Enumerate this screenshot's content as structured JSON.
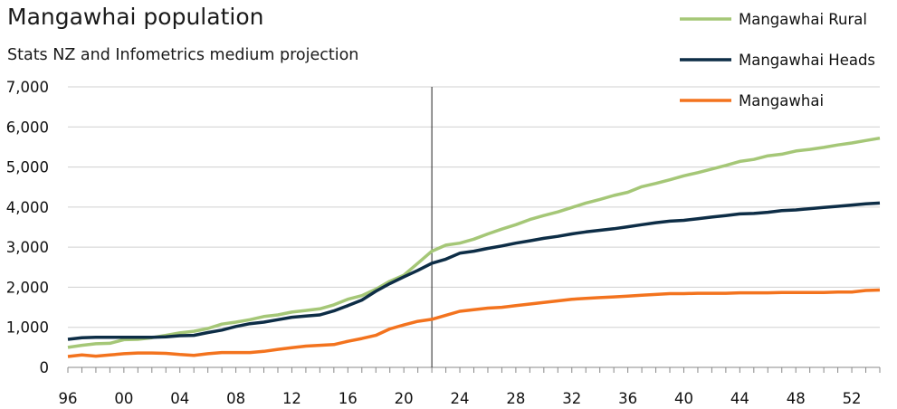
{
  "chart_data": {
    "type": "line",
    "title": "Mangawhai population",
    "subtitle": "Stats NZ and Infometrics medium projection",
    "xlabel": "",
    "ylabel": "",
    "xlim": [
      1996,
      2054
    ],
    "ylim": [
      0,
      7000
    ],
    "yticks": [
      0,
      1000,
      2000,
      3000,
      4000,
      5000,
      6000,
      7000
    ],
    "ytick_labels": [
      "0",
      "1,000",
      "2,000",
      "3,000",
      "4,000",
      "5,000",
      "6,000",
      "7,000"
    ],
    "xticks": [
      1996,
      2000,
      2004,
      2008,
      2012,
      2016,
      2020,
      2024,
      2028,
      2032,
      2036,
      2040,
      2044,
      2048,
      2052
    ],
    "xtick_labels": [
      "96",
      "00",
      "04",
      "08",
      "12",
      "16",
      "20",
      "24",
      "28",
      "32",
      "36",
      "40",
      "44",
      "48",
      "52"
    ],
    "vertical_marker_x": 2022,
    "grid": "horizontal",
    "legend_position": "top-right",
    "x": [
      1996,
      1997,
      1998,
      1999,
      2000,
      2001,
      2002,
      2003,
      2004,
      2005,
      2006,
      2007,
      2008,
      2009,
      2010,
      2011,
      2012,
      2013,
      2014,
      2015,
      2016,
      2017,
      2018,
      2019,
      2020,
      2021,
      2022,
      2023,
      2024,
      2025,
      2026,
      2027,
      2028,
      2029,
      2030,
      2031,
      2032,
      2033,
      2034,
      2035,
      2036,
      2037,
      2038,
      2039,
      2040,
      2041,
      2042,
      2043,
      2044,
      2045,
      2046,
      2047,
      2048,
      2049,
      2050,
      2051,
      2052,
      2053,
      2054
    ],
    "series": [
      {
        "name": "Mangawhai Rural",
        "color": "#a5c777",
        "values": [
          500,
          550,
          590,
          600,
          690,
          700,
          740,
          800,
          860,
          900,
          970,
          1080,
          1130,
          1190,
          1270,
          1310,
          1380,
          1420,
          1460,
          1560,
          1700,
          1790,
          1950,
          2150,
          2300,
          2600,
          2900,
          3050,
          3100,
          3200,
          3330,
          3450,
          3560,
          3690,
          3790,
          3880,
          3990,
          4100,
          4190,
          4290,
          4370,
          4510,
          4590,
          4680,
          4780,
          4860,
          4950,
          5040,
          5140,
          5190,
          5280,
          5320,
          5400,
          5440,
          5490,
          5550,
          5600,
          5660,
          5720
        ]
      },
      {
        "name": "Mangawhai Heads",
        "color": "#0d2d46",
        "values": [
          700,
          740,
          750,
          750,
          750,
          750,
          750,
          760,
          790,
          800,
          870,
          930,
          1020,
          1090,
          1130,
          1190,
          1250,
          1280,
          1310,
          1410,
          1540,
          1680,
          1900,
          2090,
          2260,
          2420,
          2600,
          2700,
          2850,
          2900,
          2970,
          3030,
          3100,
          3160,
          3220,
          3270,
          3330,
          3380,
          3420,
          3460,
          3510,
          3560,
          3610,
          3650,
          3670,
          3710,
          3750,
          3790,
          3830,
          3840,
          3870,
          3910,
          3930,
          3960,
          3990,
          4020,
          4050,
          4080,
          4100
        ]
      },
      {
        "name": "Mangawhai",
        "color": "#f3731e",
        "values": [
          270,
          310,
          280,
          310,
          340,
          360,
          360,
          350,
          320,
          300,
          340,
          370,
          370,
          370,
          400,
          450,
          490,
          530,
          550,
          570,
          650,
          720,
          800,
          960,
          1060,
          1150,
          1200,
          1300,
          1400,
          1440,
          1480,
          1500,
          1540,
          1580,
          1620,
          1660,
          1700,
          1720,
          1740,
          1760,
          1780,
          1800,
          1820,
          1840,
          1840,
          1850,
          1850,
          1850,
          1860,
          1860,
          1860,
          1870,
          1870,
          1870,
          1870,
          1880,
          1880,
          1920,
          1930
        ]
      }
    ]
  }
}
